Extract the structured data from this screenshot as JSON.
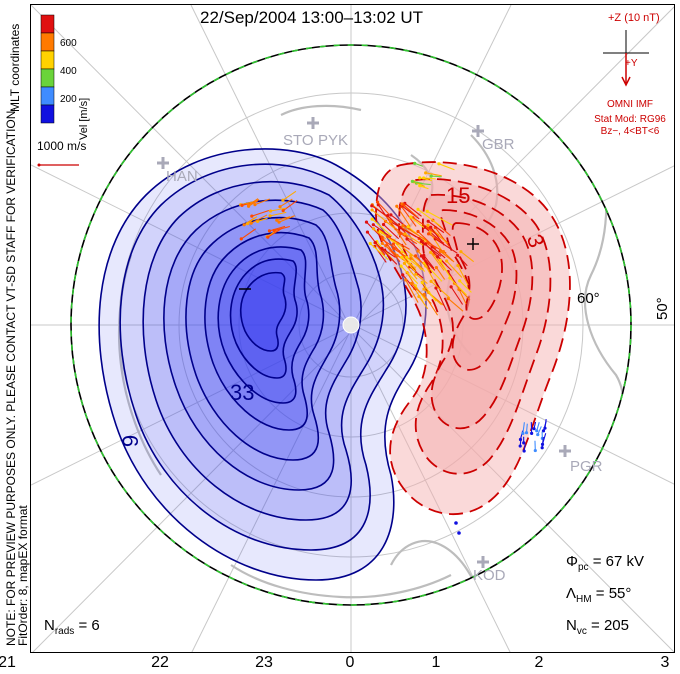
{
  "title": "22/Sep/2004 13:00–13:02 UT",
  "imf": {
    "scale_label": "+Z (10 nT)",
    "y_label": "+Y",
    "source": "OMNI IMF",
    "model": "Stat Mod: RG96",
    "condition": "Bz−, 4<BT<6"
  },
  "colorbar": {
    "title": "Vel [m/s]",
    "ticks": [
      "600",
      "400",
      "200"
    ],
    "colors": [
      "#e01010",
      "#ff7a00",
      "#ffd200",
      "#6ad43a",
      "#3f8cff",
      "#1010e0"
    ]
  },
  "side_text": {
    "coords": "MLT coordinates",
    "notice": "NOTE: FOR PREVIEW PURPOSES ONLY. PLEASE CONTACT VT-SD STAFF FOR VERIFICATION.",
    "fit": "FitOrder: 8, mapEX format"
  },
  "velocity_reference": "1000 m/s",
  "stations": [
    "STO",
    "PYK",
    "HAN",
    "GBR",
    "PGR",
    "KOD"
  ],
  "contour_labels": [
    "15",
    "3",
    "33",
    "9"
  ],
  "latitude_labels": [
    "60°",
    "50°"
  ],
  "stats": {
    "phi_pc_label": "Φ",
    "phi_pc_sub": "pc",
    "phi_pc_value": "= 67 kV",
    "lambda_label": "Λ",
    "lambda_sub": "HM",
    "lambda_value": "= 55°",
    "nvc_label": "N",
    "nvc_sub": "vc",
    "nvc_value": "= 205",
    "nrads_label": "N",
    "nrads_sub": "rads",
    "nrads_value": "= 6"
  },
  "mlt_ticks": [
    "21",
    "22",
    "23",
    "0",
    "1",
    "2",
    "3"
  ],
  "potential_colors": {
    "negative_fill": "#3a40f0",
    "positive_fill": "#f3aaaa",
    "negative_line": "#00008b",
    "positive_line": "#cc0000",
    "hmb_line": "#2ec42e",
    "grid": "#c8c8c8",
    "land": "#b8b8b8"
  }
}
